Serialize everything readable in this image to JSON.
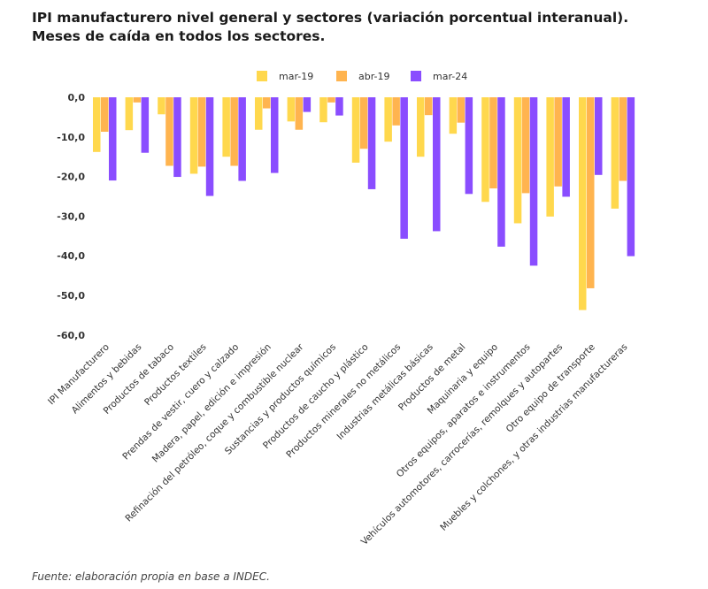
{
  "chart_data": {
    "type": "bar",
    "title": "IPI manufacturero nivel general y sectores (variación porcentual interanual). Meses de caída en todos los sectores.",
    "source": "Fuente: elaboración propia en base a INDEC.",
    "ylim": [
      -60,
      0
    ],
    "yticks": [
      "0,0",
      "-10,0",
      "-20,0",
      "-30,0",
      "-40,0",
      "-50,0",
      "-60,0"
    ],
    "grid": false,
    "legend_position": "top",
    "categories": [
      "IPI Manufacturero",
      "Alimentos y bebidas",
      "Productos de tabaco",
      "Productos textiles",
      "Prendas de vestir, cuero y calzado",
      "Madera, papel, edición e impresión",
      "Refinación del petróleo, coque y combustible nuclear",
      "Sustancias y productos químicos",
      "Productos de caucho y plástico",
      "Productos minerales no metálicos",
      "Industrias metálicas básicas",
      "Productos de metal",
      "Maquinaria y equipo",
      "Otros equipos, aparatos e instrumentos",
      "Vehículos automotores, carrocerías, remolques y autopartes",
      "Otro equipo de transporte",
      "Muebles y colchones, y otras industrias manufactureras"
    ],
    "series": [
      {
        "name": "mar-19",
        "color": "#FFD84D",
        "values": [
          -13.8,
          -8.3,
          -4.3,
          -19.3,
          -15.0,
          -8.2,
          -6.1,
          -6.3,
          -16.5,
          -11.2,
          -15.0,
          -9.2,
          -26.4,
          -31.8,
          -30.1,
          -53.7,
          -28.1
        ]
      },
      {
        "name": "abr-19",
        "color": "#FFB44F",
        "values": [
          -8.7,
          -1.3,
          -17.3,
          -17.5,
          -17.3,
          -2.8,
          -8.2,
          -1.3,
          -13.0,
          -7.1,
          -4.5,
          -6.4,
          -23.0,
          -24.2,
          -22.5,
          -48.2,
          -21.1
        ]
      },
      {
        "name": "mar-24",
        "color": "#8A4DFF",
        "values": [
          -21.0,
          -14.0,
          -20.1,
          -24.9,
          -21.1,
          -19.1,
          -3.7,
          -4.6,
          -23.2,
          -35.7,
          -33.8,
          -24.4,
          -37.7,
          -42.5,
          -25.1,
          -19.6,
          -40.1
        ]
      }
    ]
  }
}
